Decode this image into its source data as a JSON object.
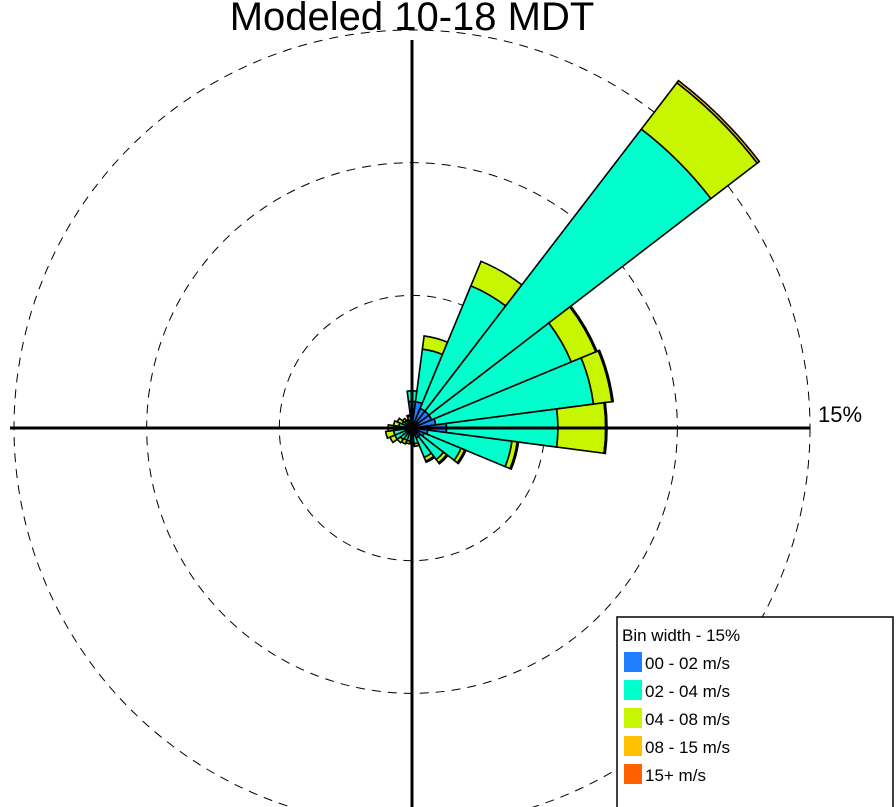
{
  "chart_data": {
    "type": "windrose",
    "title": "Modeled 10-18 MDT",
    "ring_label": "15%",
    "rings_percent": [
      5,
      10,
      15
    ],
    "rmax_percent": 15,
    "sector_width_degrees": 15,
    "legend_title": "Bin width - 15%",
    "bins": [
      {
        "label": "00 - 02 m/s",
        "color": "#1f7fff"
      },
      {
        "label": "02 - 04 m/s",
        "color": "#00ffcc"
      },
      {
        "label": "04 - 08 m/s",
        "color": "#c8f500"
      },
      {
        "label": "08 - 15 m/s",
        "color": "#ffc000"
      },
      {
        "label": "15+ m/s",
        "color": "#ff6000"
      }
    ],
    "directions_degrees": [
      0,
      15,
      30,
      45,
      60,
      75,
      90,
      105,
      120,
      135,
      150,
      165,
      180,
      195,
      210,
      225,
      240,
      255,
      270,
      285,
      300,
      315,
      330,
      345
    ],
    "cumulative_percent": [
      [
        1.0,
        1.4,
        1.4,
        1.4,
        1.4
      ],
      [
        1.0,
        3.0,
        3.5,
        3.5,
        3.5
      ],
      [
        0.8,
        5.8,
        6.8,
        6.8,
        6.8
      ],
      [
        0.8,
        14.2,
        16.4,
        16.5,
        16.5
      ],
      [
        0.8,
        6.5,
        7.5,
        7.55,
        7.55
      ],
      [
        0.9,
        6.9,
        7.6,
        7.65,
        7.65
      ],
      [
        1.3,
        5.5,
        7.3,
        7.35,
        7.35
      ],
      [
        0.6,
        3.8,
        4.0,
        4.05,
        4.05
      ],
      [
        0.5,
        2.0,
        2.15,
        2.2,
        2.2
      ],
      [
        0.4,
        1.5,
        1.65,
        1.7,
        1.7
      ],
      [
        0.4,
        1.2,
        1.35,
        1.4,
        1.4
      ],
      [
        0.3,
        0.6,
        0.7,
        0.7,
        0.7
      ],
      [
        0.2,
        0.4,
        0.5,
        0.5,
        0.5
      ],
      [
        0.2,
        0.5,
        0.6,
        0.6,
        0.6
      ],
      [
        0.2,
        0.5,
        0.65,
        0.65,
        0.65
      ],
      [
        0.2,
        0.55,
        0.7,
        0.7,
        0.7
      ],
      [
        0.2,
        0.7,
        0.9,
        0.9,
        0.9
      ],
      [
        0.2,
        0.7,
        1.0,
        1.0,
        1.0
      ],
      [
        0.2,
        0.7,
        0.9,
        0.9,
        0.9
      ],
      [
        0.2,
        0.5,
        0.7,
        0.7,
        0.7
      ],
      [
        0.2,
        0.4,
        0.6,
        0.6,
        0.6
      ],
      [
        0.2,
        0.35,
        0.45,
        0.45,
        0.45
      ],
      [
        0.2,
        0.3,
        0.35,
        0.35,
        0.35
      ],
      [
        0.3,
        0.45,
        0.5,
        0.5,
        0.5
      ]
    ]
  }
}
